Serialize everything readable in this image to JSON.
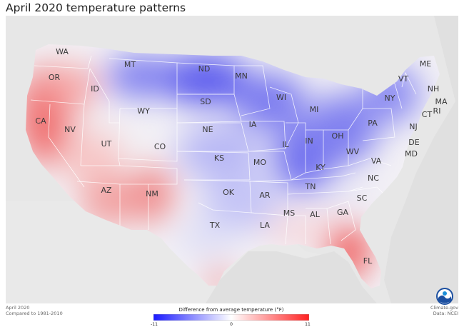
{
  "header": {
    "title": "April 2020 temperature patterns"
  },
  "footer": {
    "left_line1": "April 2020",
    "left_line2": "Compared to 1981-2010",
    "right_line1": "Climate.gov",
    "right_line2": "Data: NCEI"
  },
  "legend": {
    "title": "Difference from average temperature (°F)",
    "min_label": "-11",
    "mid_label": "0",
    "max_label": "11",
    "colors": [
      "#1a1aff",
      "#ffffff",
      "#ff2222"
    ]
  },
  "logo": {
    "icon": "noaa-logo-icon"
  },
  "states": [
    {
      "abbr": "WA"
    },
    {
      "abbr": "OR"
    },
    {
      "abbr": "CA"
    },
    {
      "abbr": "ID"
    },
    {
      "abbr": "NV"
    },
    {
      "abbr": "MT"
    },
    {
      "abbr": "WY"
    },
    {
      "abbr": "UT"
    },
    {
      "abbr": "AZ"
    },
    {
      "abbr": "CO"
    },
    {
      "abbr": "NM"
    },
    {
      "abbr": "ND"
    },
    {
      "abbr": "SD"
    },
    {
      "abbr": "NE"
    },
    {
      "abbr": "KS"
    },
    {
      "abbr": "OK"
    },
    {
      "abbr": "TX"
    },
    {
      "abbr": "MN"
    },
    {
      "abbr": "IA"
    },
    {
      "abbr": "MO"
    },
    {
      "abbr": "AR"
    },
    {
      "abbr": "LA"
    },
    {
      "abbr": "WI"
    },
    {
      "abbr": "IL"
    },
    {
      "abbr": "MI"
    },
    {
      "abbr": "IN"
    },
    {
      "abbr": "OH"
    },
    {
      "abbr": "KY"
    },
    {
      "abbr": "TN"
    },
    {
      "abbr": "MS"
    },
    {
      "abbr": "AL"
    },
    {
      "abbr": "GA"
    },
    {
      "abbr": "FL"
    },
    {
      "abbr": "SC"
    },
    {
      "abbr": "NC"
    },
    {
      "abbr": "VA"
    },
    {
      "abbr": "WV"
    },
    {
      "abbr": "PA"
    },
    {
      "abbr": "NY"
    },
    {
      "abbr": "VT"
    },
    {
      "abbr": "NH"
    },
    {
      "abbr": "ME"
    },
    {
      "abbr": "MA"
    },
    {
      "abbr": "RI"
    },
    {
      "abbr": "CT"
    },
    {
      "abbr": "NJ"
    },
    {
      "abbr": "DE"
    },
    {
      "abbr": "MD"
    }
  ]
}
